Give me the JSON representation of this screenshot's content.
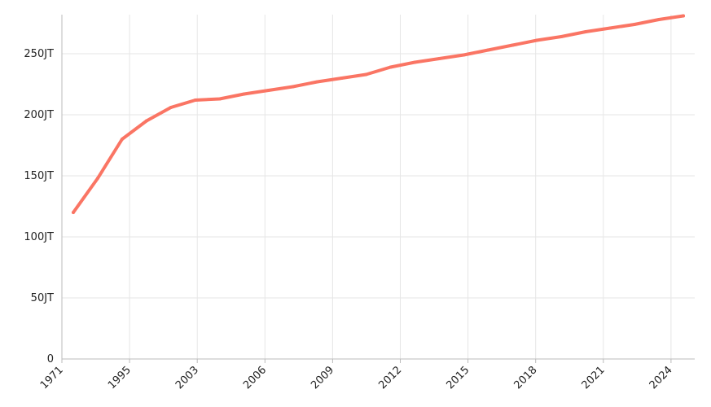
{
  "chart_data": {
    "type": "line",
    "title": "",
    "xlabel": "",
    "ylabel": "",
    "x_ticks": [
      "1971",
      "1995",
      "2003",
      "2006",
      "2009",
      "2012",
      "2015",
      "2018",
      "2021",
      "2024"
    ],
    "y_ticks": [
      {
        "value": 0,
        "label": "0"
      },
      {
        "value": 50,
        "label": "50JT"
      },
      {
        "value": 100,
        "label": "100JT"
      },
      {
        "value": 150,
        "label": "150JT"
      },
      {
        "value": 200,
        "label": "200JT"
      },
      {
        "value": 250,
        "label": "250JT"
      }
    ],
    "ylim": [
      0,
      282
    ],
    "grid": true,
    "colors": {
      "line": "#fa7564",
      "grid": "#e6e6e6",
      "axis": "#bbbbbb"
    },
    "series": [
      {
        "values": [
          120,
          148,
          180,
          195,
          206,
          212,
          213,
          217,
          220,
          223,
          227,
          230,
          233,
          239,
          243,
          246,
          249,
          253,
          257,
          261,
          264,
          268,
          271,
          274,
          278,
          281
        ]
      }
    ]
  }
}
